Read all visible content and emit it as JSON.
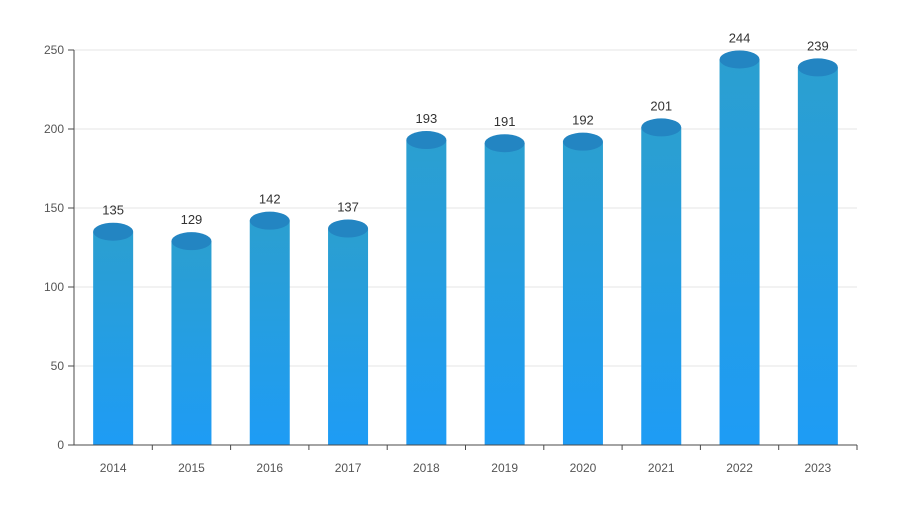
{
  "chart_data": {
    "type": "bar",
    "style": "3d-cylinder",
    "categories": [
      "2014",
      "2015",
      "2016",
      "2017",
      "2018",
      "2019",
      "2020",
      "2021",
      "2022",
      "2023"
    ],
    "values": [
      135,
      129,
      142,
      137,
      193,
      191,
      192,
      201,
      244,
      239
    ],
    "yticks": [
      "0",
      "50",
      "100",
      "150",
      "200",
      "250"
    ],
    "ylim": [
      0,
      250
    ],
    "grid": true,
    "title": "",
    "xlabel": "",
    "ylabel": ""
  },
  "colors": {
    "bar_top": "#2b9fd0",
    "bar_bottom": "#1e9cf5",
    "cap": "#2385c2",
    "axis": "#4a4a4a",
    "grid": "#e6e6e6",
    "label": "#333333"
  }
}
